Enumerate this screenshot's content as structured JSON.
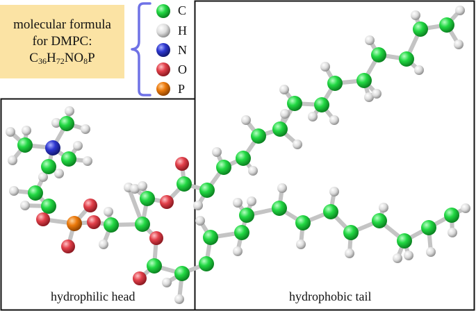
{
  "formula_box": {
    "line1": "molecular formula",
    "line2": "for DMPC:",
    "formula_parts": [
      {
        "text": "C",
        "sub": "36"
      },
      {
        "text": "H",
        "sub": "72"
      },
      {
        "text": "NO",
        "sub": "8"
      },
      {
        "text": "P",
        "sub": ""
      }
    ]
  },
  "legend": [
    {
      "symbol": "C",
      "color": "#18d43a"
    },
    {
      "symbol": "H",
      "color": "#d6d6d6"
    },
    {
      "symbol": "N",
      "color": "#2b34c8"
    },
    {
      "symbol": "O",
      "color": "#e2404a"
    },
    {
      "symbol": "P",
      "color": "#ec7a0c"
    }
  ],
  "regions": {
    "head": "hydrophilic head",
    "tail": "hydrophobic tail"
  },
  "colors": {
    "bracket": "#6f72e6",
    "bond": "#c4c4c4",
    "frame": "#111111",
    "formula_bg": "#fbe3a4"
  }
}
